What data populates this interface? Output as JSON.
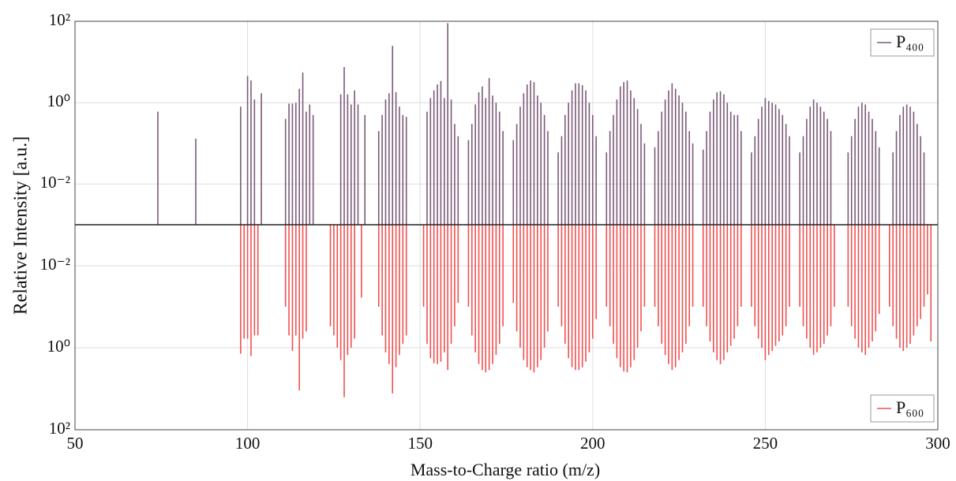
{
  "chart_data": [
    {
      "type": "stem",
      "y_label": "Relative Intensity [a.u.]",
      "log_y": true,
      "grid": true,
      "legend": "upper right",
      "ylim": [
        0.001,
        100
      ],
      "yticks": [
        {
          "value": 0.01,
          "label": "10⁻²"
        },
        {
          "value": 1,
          "label": "10⁰"
        },
        {
          "value": 100,
          "label": "10²"
        }
      ],
      "series": [
        {
          "name": "P₄₀₀",
          "color": "#7b5a78",
          "x": [
            74,
            85,
            98,
            100,
            101,
            102,
            104,
            111,
            112,
            113,
            114,
            115,
            116,
            117,
            118,
            119,
            127,
            128,
            129,
            130,
            131,
            132,
            134,
            138,
            139,
            140,
            141,
            142,
            143,
            144,
            145,
            146,
            152,
            153,
            154,
            155,
            156,
            157,
            158,
            159,
            160,
            161,
            164,
            165,
            166,
            167,
            168,
            169,
            170,
            171,
            172,
            173,
            174,
            177,
            178,
            179,
            180,
            181,
            182,
            183,
            184,
            185,
            186,
            187,
            190,
            191,
            192,
            193,
            194,
            195,
            196,
            197,
            198,
            199,
            200,
            201,
            204,
            205,
            206,
            207,
            208,
            209,
            210,
            211,
            212,
            213,
            214,
            215,
            218,
            219,
            220,
            221,
            222,
            223,
            224,
            225,
            226,
            227,
            228,
            229,
            232,
            233,
            234,
            235,
            236,
            237,
            238,
            239,
            240,
            241,
            242,
            243,
            246,
            247,
            248,
            249,
            250,
            251,
            252,
            253,
            254,
            255,
            256,
            257,
            260,
            261,
            262,
            263,
            264,
            265,
            266,
            267,
            268,
            269,
            274,
            275,
            276,
            277,
            278,
            279,
            280,
            281,
            282,
            283,
            287,
            288,
            289,
            290,
            291,
            292,
            293,
            294,
            295,
            296
          ],
          "values": [
            0.6,
            0.13,
            0.8,
            4.5,
            3.5,
            1.2,
            1.7,
            0.4,
            0.95,
            0.95,
            1.0,
            2.2,
            5.5,
            0.6,
            0.9,
            0.5,
            1.6,
            7.5,
            1.6,
            0.9,
            2.0,
            0.9,
            0.5,
            0.2,
            0.5,
            1.2,
            1.7,
            25,
            1.8,
            0.8,
            0.5,
            0.45,
            0.6,
            1.3,
            2.0,
            2.8,
            3.4,
            1.3,
            90,
            1.2,
            0.3,
            0.15,
            0.12,
            0.3,
            0.9,
            1.8,
            2.5,
            1.3,
            4.0,
            1.5,
            1.0,
            0.6,
            0.2,
            0.12,
            0.3,
            0.8,
            1.7,
            2.8,
            3.5,
            3.2,
            1.5,
            1.0,
            0.5,
            0.2,
            0.06,
            0.15,
            0.5,
            1.0,
            2.0,
            3.0,
            3.0,
            2.7,
            2.0,
            1.0,
            0.5,
            0.15,
            0.06,
            0.2,
            0.5,
            1.2,
            2.5,
            3.2,
            3.5,
            2.0,
            1.3,
            0.7,
            0.3,
            0.1,
            0.08,
            0.2,
            0.6,
            1.2,
            2.0,
            3.0,
            2.2,
            1.5,
            1.0,
            0.6,
            0.2,
            0.1,
            0.07,
            0.2,
            0.6,
            1.2,
            1.8,
            1.9,
            1.6,
            1.0,
            0.6,
            0.5,
            0.5,
            0.2,
            0.06,
            0.15,
            0.4,
            0.8,
            1.3,
            1.1,
            1.0,
            0.9,
            0.7,
            0.5,
            0.3,
            0.15,
            0.06,
            0.15,
            0.4,
            0.8,
            1.2,
            1.0,
            0.8,
            0.6,
            0.4,
            0.2,
            0.06,
            0.15,
            0.4,
            0.8,
            1.0,
            0.9,
            0.6,
            0.4,
            0.2,
            0.08,
            0.06,
            0.2,
            0.5,
            0.8,
            0.9,
            0.8,
            0.6,
            0.3,
            0.15,
            0.06
          ]
        }
      ]
    },
    {
      "type": "stem",
      "x_label": "Mass-to-Charge ratio (m/z)",
      "log_y": true,
      "grid": true,
      "legend": "lower right",
      "xlim": [
        50,
        300
      ],
      "xticks": [
        50,
        100,
        150,
        200,
        250,
        300
      ],
      "ylim": [
        100,
        0.001
      ],
      "yticks": [
        {
          "value": 0.01,
          "label": "10⁻²"
        },
        {
          "value": 1,
          "label": "10⁰"
        },
        {
          "value": 100,
          "label": "10²"
        }
      ],
      "series": [
        {
          "name": "P₆₀₀",
          "color": "#f05050",
          "x": [
            98,
            99,
            100,
            101,
            102,
            103,
            111,
            112,
            113,
            114,
            115,
            116,
            117,
            124,
            125,
            126,
            127,
            128,
            129,
            130,
            131,
            133,
            138,
            139,
            140,
            141,
            142,
            143,
            144,
            145,
            146,
            151,
            152,
            153,
            154,
            155,
            156,
            157,
            158,
            159,
            160,
            161,
            164,
            165,
            166,
            167,
            168,
            169,
            170,
            171,
            172,
            173,
            174,
            177,
            178,
            179,
            180,
            181,
            182,
            183,
            184,
            185,
            186,
            187,
            190,
            191,
            192,
            193,
            194,
            195,
            196,
            197,
            198,
            199,
            200,
            201,
            204,
            205,
            206,
            207,
            208,
            209,
            210,
            211,
            212,
            213,
            214,
            215,
            218,
            219,
            220,
            221,
            222,
            223,
            224,
            225,
            226,
            227,
            228,
            229,
            232,
            233,
            234,
            235,
            236,
            237,
            238,
            239,
            240,
            241,
            242,
            243,
            246,
            247,
            248,
            249,
            250,
            251,
            252,
            253,
            254,
            255,
            256,
            257,
            260,
            261,
            262,
            263,
            264,
            265,
            266,
            267,
            268,
            269,
            270,
            274,
            275,
            276,
            277,
            278,
            279,
            280,
            281,
            282,
            283,
            286,
            287,
            288,
            289,
            290,
            291,
            292,
            293,
            294,
            295,
            296,
            297,
            298
          ],
          "values": [
            1.4,
            0.6,
            0.6,
            1.6,
            0.5,
            0.5,
            0.1,
            0.5,
            1.2,
            0.5,
            11,
            0.6,
            0.4,
            0.3,
            0.5,
            1.0,
            2.0,
            16,
            1.5,
            1.0,
            0.6,
            0.06,
            0.1,
            0.5,
            1.3,
            2.5,
            13,
            3.0,
            1.5,
            0.8,
            0.5,
            0.1,
            0.8,
            1.8,
            2.4,
            2.5,
            2.2,
            1.3,
            3.5,
            0.8,
            0.3,
            0.08,
            0.1,
            0.5,
            1.3,
            2.5,
            3.5,
            4.0,
            3.5,
            2.5,
            1.5,
            0.8,
            0.3,
            0.08,
            0.4,
            1.0,
            2.0,
            3.0,
            3.5,
            4.0,
            3.0,
            2.0,
            1.0,
            0.4,
            0.1,
            0.3,
            0.8,
            1.8,
            3.0,
            3.5,
            3.5,
            3.0,
            2.2,
            1.3,
            0.6,
            0.2,
            0.1,
            0.3,
            0.8,
            1.8,
            3.0,
            3.8,
            4.0,
            3.0,
            2.0,
            1.0,
            0.4,
            0.1,
            0.1,
            0.3,
            0.8,
            1.5,
            2.5,
            3.5,
            3.0,
            2.0,
            1.3,
            0.8,
            0.3,
            0.1,
            0.1,
            0.3,
            0.7,
            1.3,
            2.0,
            2.5,
            2.0,
            1.3,
            0.9,
            0.6,
            0.3,
            0.1,
            0.1,
            0.3,
            0.6,
            1.0,
            2.0,
            1.5,
            1.2,
            0.9,
            0.7,
            0.5,
            0.3,
            0.1,
            0.1,
            0.3,
            0.6,
            1.0,
            1.5,
            1.3,
            1.0,
            0.8,
            0.5,
            0.3,
            0.1,
            0.1,
            0.3,
            0.6,
            1.0,
            1.3,
            1.5,
            1.0,
            0.7,
            0.4,
            0.15,
            0.1,
            0.3,
            0.6,
            1.0,
            1.2,
            1.0,
            0.8,
            0.5,
            0.3,
            0.2,
            0.1,
            0.05,
            0.7
          ]
        }
      ]
    }
  ]
}
